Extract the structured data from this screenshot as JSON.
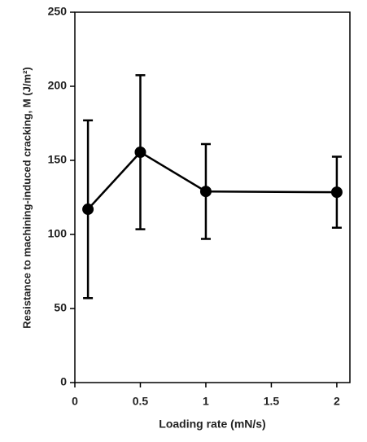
{
  "chart_data": {
    "type": "line",
    "xlabel": "Loading rate (mN/s)",
    "ylabel": "Resistance to machining-induced cracking, M (J/m²)",
    "x": [
      0.1,
      0.5,
      1,
      2
    ],
    "series": [
      {
        "color": "#000000",
        "values": [
          117,
          155.5,
          129,
          128.5
        ],
        "errors": [
          60,
          52,
          32,
          24
        ]
      }
    ],
    "xlim": [
      0,
      2.1
    ],
    "xticks": [
      0,
      0.5,
      1,
      1.5,
      2
    ],
    "ylim": [
      0,
      250
    ],
    "yticks": [
      0,
      50,
      100,
      150,
      200,
      250
    ]
  }
}
